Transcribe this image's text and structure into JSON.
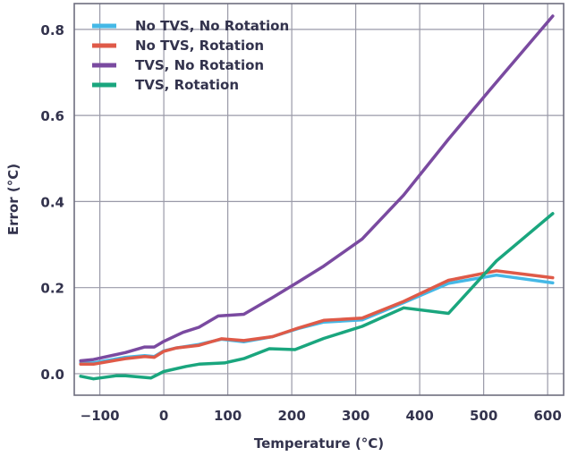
{
  "chart_data": {
    "type": "line",
    "title": "",
    "xlabel": "Temperature (°C)",
    "ylabel": "Error (°C)",
    "xlim": [
      -140,
      625
    ],
    "ylim": [
      -0.05,
      0.86
    ],
    "xticks": [
      -100,
      0,
      100,
      200,
      300,
      400,
      500,
      600
    ],
    "xtick_labels": [
      "−100",
      "0",
      "100",
      "200",
      "300",
      "400",
      "500",
      "600"
    ],
    "yticks": [
      0.0,
      0.2,
      0.4,
      0.6,
      0.8
    ],
    "ytick_labels": [
      "0.0",
      "0.2",
      "0.4",
      "0.6",
      "0.8"
    ],
    "grid": true,
    "legend_position": "top-left",
    "series": [
      {
        "name": "No TVS, No Rotation",
        "color": "#45b8e6",
        "x": [
          -130,
          -110,
          -60,
          -30,
          -15,
          0,
          20,
          55,
          90,
          125,
          170,
          210,
          250,
          310,
          375,
          445,
          520,
          608
        ],
        "y": [
          0.025,
          0.025,
          0.038,
          0.042,
          0.04,
          0.053,
          0.06,
          0.068,
          0.08,
          0.074,
          0.086,
          0.105,
          0.12,
          0.125,
          0.165,
          0.21,
          0.229,
          0.211
        ]
      },
      {
        "name": "No TVS, Rotation",
        "color": "#df5a48",
        "x": [
          -130,
          -110,
          -60,
          -30,
          -15,
          0,
          20,
          55,
          90,
          125,
          170,
          210,
          250,
          310,
          375,
          445,
          520,
          608
        ],
        "y": [
          0.022,
          0.022,
          0.035,
          0.04,
          0.038,
          0.052,
          0.06,
          0.066,
          0.081,
          0.077,
          0.086,
          0.106,
          0.124,
          0.129,
          0.168,
          0.217,
          0.239,
          0.223
        ]
      },
      {
        "name": "TVS, No Rotation",
        "color": "#7a4aa0",
        "x": [
          -130,
          -110,
          -60,
          -30,
          -15,
          0,
          30,
          55,
          85,
          125,
          170,
          210,
          250,
          310,
          375,
          445,
          510,
          608
        ],
        "y": [
          0.03,
          0.033,
          0.049,
          0.062,
          0.062,
          0.075,
          0.096,
          0.108,
          0.134,
          0.138,
          0.177,
          0.213,
          0.25,
          0.313,
          0.415,
          0.545,
          0.66,
          0.831
        ]
      },
      {
        "name": "TVS, Rotation",
        "color": "#1aa67e",
        "x": [
          -130,
          -110,
          -75,
          -60,
          -20,
          0,
          35,
          55,
          95,
          125,
          165,
          205,
          250,
          310,
          375,
          445,
          520,
          608
        ],
        "y": [
          -0.006,
          -0.012,
          -0.005,
          -0.005,
          -0.01,
          0.005,
          0.017,
          0.022,
          0.025,
          0.035,
          0.058,
          0.056,
          0.082,
          0.11,
          0.153,
          0.14,
          0.262,
          0.372
        ]
      }
    ]
  }
}
